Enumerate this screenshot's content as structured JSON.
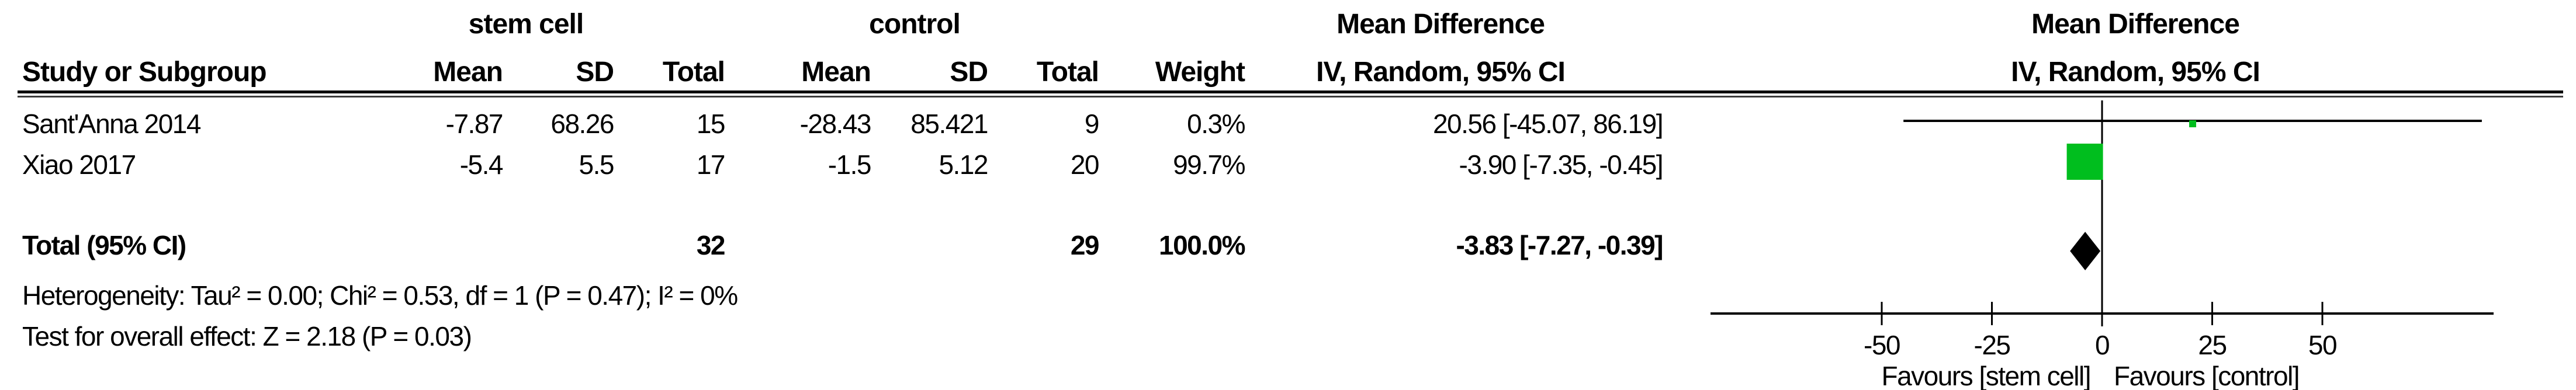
{
  "table": {
    "group_headers": {
      "experimental": "stem cell",
      "control": "control",
      "md_text_col": "Mean Difference",
      "md_plot_col": "Mean Difference"
    },
    "col_headers": {
      "study": "Study or Subgroup",
      "mean1": "Mean",
      "sd1": "SD",
      "total1": "Total",
      "mean2": "Mean",
      "sd2": "SD",
      "total2": "Total",
      "weight": "Weight",
      "ci_text_col": "IV, Random, 95% CI",
      "ci_plot_col": "IV, Random, 95% CI"
    },
    "rows": [
      {
        "study": "Sant'Anna 2014",
        "mean1": "-7.87",
        "sd1": "68.26",
        "total1": "15",
        "mean2": "-28.43",
        "sd2": "85.421",
        "total2": "9",
        "weight": "0.3%",
        "ci": "20.56 [-45.07, 86.19]"
      },
      {
        "study": "Xiao 2017",
        "mean1": "-5.4",
        "sd1": "5.5",
        "total1": "17",
        "mean2": "-1.5",
        "sd2": "5.12",
        "total2": "20",
        "weight": "99.7%",
        "ci": "-3.90 [-7.35, -0.45]"
      }
    ],
    "total_row": {
      "label": "Total (95% CI)",
      "total1": "32",
      "total2": "29",
      "weight": "100.0%",
      "ci": "-3.83 [-7.27, -0.39]"
    }
  },
  "footer": {
    "heterogeneity": "Heterogeneity: Tau² = 0.00; Chi² = 0.53, df = 1 (P = 0.47); I² = 0%",
    "overall_effect": "Test for overall effect: Z = 2.18 (P = 0.03)"
  },
  "chart_data": {
    "type": "forest",
    "effect_measure": "Mean Difference",
    "model": "IV, Random, 95% CI",
    "x_ticks": [
      -50,
      -25,
      0,
      25,
      50
    ],
    "xlim": [
      -88,
      88
    ],
    "studies": [
      {
        "name": "Sant'Anna 2014",
        "md": 20.56,
        "ci_low": -45.07,
        "ci_high": 86.19,
        "weight_pct": 0.3,
        "marker_color": "#00be1e"
      },
      {
        "name": "Xiao 2017",
        "md": -3.9,
        "ci_low": -7.35,
        "ci_high": -0.45,
        "weight_pct": 99.7,
        "marker_color": "#00be1e"
      }
    ],
    "total": {
      "md": -3.83,
      "ci_low": -7.27,
      "ci_high": -0.39,
      "diamond_color": "#000000"
    },
    "favours_left": "Favours [stem cell]",
    "favours_right": "Favours [control]",
    "axis_color": "#000000",
    "grid": false,
    "legend": false
  }
}
